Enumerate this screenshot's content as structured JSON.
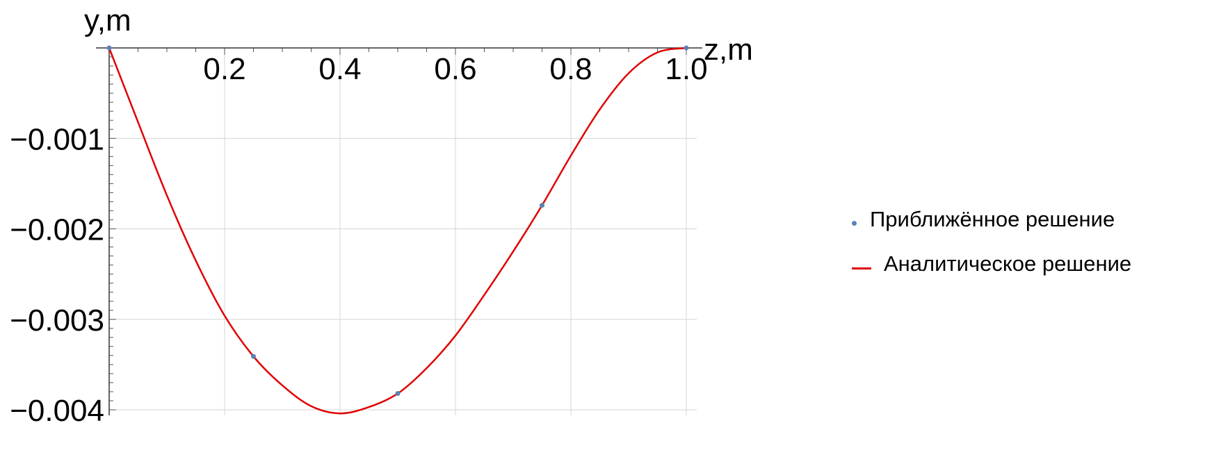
{
  "chart_data": {
    "type": "line",
    "xlabel": "z,m",
    "ylabel": "y,m",
    "xlim": [
      0,
      1.02
    ],
    "ylim": [
      -0.00405,
      0
    ],
    "x_ticks": [
      {
        "value": 0.2,
        "label": "0.2"
      },
      {
        "value": 0.4,
        "label": "0.4"
      },
      {
        "value": 0.6,
        "label": "0.6"
      },
      {
        "value": 0.8,
        "label": "0.8"
      },
      {
        "value": 1.0,
        "label": "1.0"
      }
    ],
    "y_ticks": [
      {
        "value": -0.001,
        "label": "−0.001"
      },
      {
        "value": -0.002,
        "label": "−0.002"
      },
      {
        "value": -0.003,
        "label": "−0.003"
      },
      {
        "value": -0.004,
        "label": "−0.004"
      }
    ],
    "grid": true,
    "legend_position": "right",
    "series": [
      {
        "name": "Приближённое решение",
        "kind": "scatter",
        "color": "#5e81b5",
        "x": [
          0,
          0.25,
          0.5,
          0.75,
          1.0
        ],
        "y": [
          0,
          -0.00341,
          -0.00382,
          -0.00174,
          0
        ]
      },
      {
        "name": "Аналитическое решение",
        "kind": "line",
        "color": "#e00000",
        "x": [
          0,
          0.05,
          0.1,
          0.15,
          0.2,
          0.25,
          0.3,
          0.35,
          0.4,
          0.45,
          0.5,
          0.55,
          0.6,
          0.65,
          0.7,
          0.75,
          0.8,
          0.85,
          0.9,
          0.95,
          1.0
        ],
        "y": [
          0,
          -0.00082,
          -0.00163,
          -0.00235,
          -0.00296,
          -0.00341,
          -0.00373,
          -0.00396,
          -0.00404,
          -0.00397,
          -0.00382,
          -0.00354,
          -0.00318,
          -0.00273,
          -0.00225,
          -0.00174,
          -0.00119,
          -0.00068,
          -0.00028,
          -5e-05,
          0
        ]
      }
    ]
  }
}
